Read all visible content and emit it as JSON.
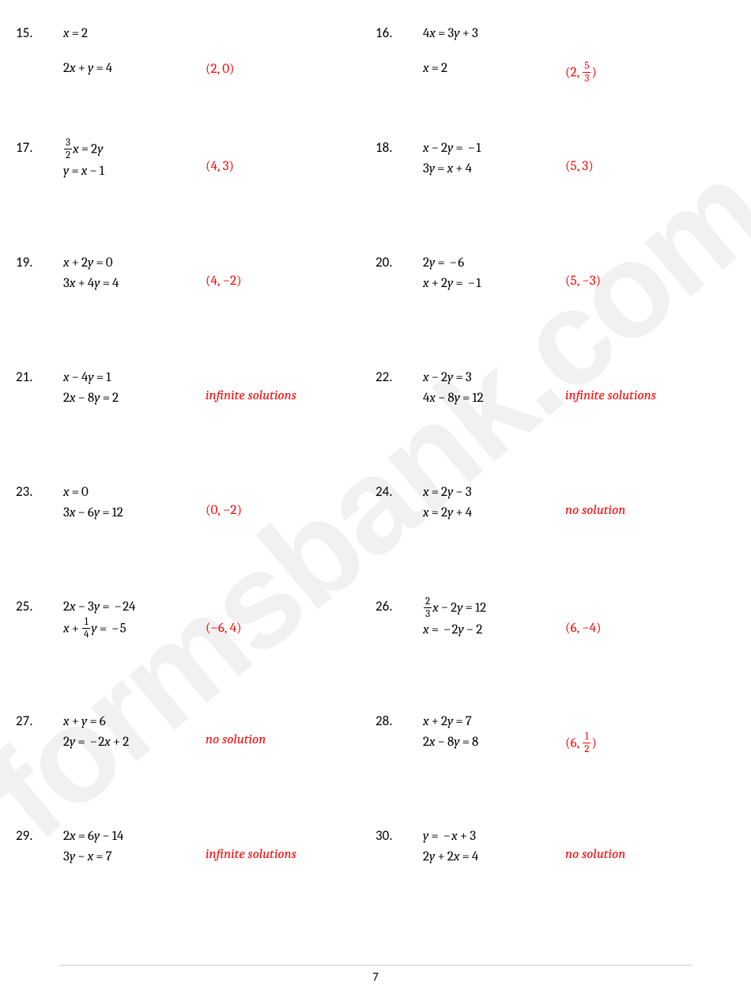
{
  "watermark_text": "formsbank.com",
  "page_number": "7",
  "answer_color": "#ff0000",
  "text_color": "#000000",
  "background_color": "#ffffff",
  "watermark_color": "#f1f1f1",
  "problems": [
    {
      "num": "15.",
      "eq1_html": "<span class='var'>x</span><span class='op'>=</span><span class='num'>2</span>",
      "gap": true,
      "eq2_html": "<span class='num'>2</span><span class='var'>x</span><span class='op'>+</span><span class='var'>y</span><span class='op'>=</span><span class='num'>4</span>",
      "answer_html": "(2, 0)",
      "answer_pad": 48
    },
    {
      "num": "16.",
      "eq1_html": "<span class='num'>4</span><span class='var'>x</span><span class='op'>=</span><span class='num'>3</span><span class='var'>y</span><span class='op'>+</span><span class='num'>3</span>",
      "gap": true,
      "eq2_html": "<span class='var'>x</span><span class='op'>=</span><span class='num'>2</span>",
      "answer_html": "(2, <span class='frac'><span class='fn'>5</span><span class='fd'>3</span></span>)",
      "answer_pad": 48
    },
    {
      "num": "17.",
      "eq1_html": "<span class='frac'><span class='fn'>3</span><span class='fd'>2</span></span><span class='var'>x</span><span class='op'>=</span><span class='num'>2</span><span class='var'>y</span>",
      "eq2_html": "<span class='var'>y</span><span class='op'>=</span><span class='var'>x</span><span class='op'>−</span><span class='num'>1</span>",
      "answer_html": "(4, 3)"
    },
    {
      "num": "18.",
      "eq1_html": "<span class='var'>x</span><span class='op'>−</span><span class='num'>2</span><span class='var'>y</span><span class='op'>=</span><span class='op' style='padding:0 1px 0 3px'>−</span><span class='num'>1</span>",
      "eq2_html": "<span class='num'>3</span><span class='var'>y</span><span class='op'>=</span><span class='var'>x</span><span class='op'>+</span><span class='num'>4</span>",
      "answer_html": "(5, 3)"
    },
    {
      "num": "19.",
      "eq1_html": "<span class='var'>x</span><span class='op'>+</span><span class='num'>2</span><span class='var'>y</span><span class='op'>=</span><span class='num'>0</span>",
      "eq2_html": "<span class='num'>3</span><span class='var'>x</span><span class='op'>+</span><span class='num'>4</span><span class='var'>y</span><span class='op'>=</span><span class='num'>4</span>",
      "answer_html": "(4, −2)"
    },
    {
      "num": "20.",
      "eq1_html": "<span class='num'>2</span><span class='var'>y</span><span class='op'>=</span><span class='op' style='padding:0 1px 0 3px'>−</span><span class='num'>6</span>",
      "eq2_html": "<span class='var'>x</span><span class='op'>+</span><span class='num'>2</span><span class='var'>y</span><span class='op'>=</span><span class='op' style='padding:0 1px 0 3px'>−</span><span class='num'>1</span>",
      "answer_html": "(5, −3)"
    },
    {
      "num": "21.",
      "eq1_html": "<span class='var'>x</span><span class='op'>−</span><span class='num'>4</span><span class='var'>y</span><span class='op'>=</span><span class='num'>1</span>",
      "eq2_html": "<span class='num'>2</span><span class='var'>x</span><span class='op'>−</span><span class='num'>8</span><span class='var'>y</span><span class='op'>=</span><span class='num'>2</span>",
      "answer_html": "<span class='ital'>infinite solutions</span>"
    },
    {
      "num": "22.",
      "eq1_html": "<span class='var'>x</span><span class='op'>−</span><span class='num'>2</span><span class='var'>y</span><span class='op'>=</span><span class='num'>3</span>",
      "eq2_html": "<span class='num'>4</span><span class='var'>x</span><span class='op'>−</span><span class='num'>8</span><span class='var'>y</span><span class='op'>=</span><span class='num'>12</span>",
      "answer_html": "<span class='ital'>infinite solutions</span>"
    },
    {
      "num": "23.",
      "eq1_html": "<span class='var'>x</span><span class='op'>=</span><span class='num'>0</span>",
      "eq2_html": "<span class='num'>3</span><span class='var'>x</span><span class='op'>−</span><span class='num'>6</span><span class='var'>y</span><span class='op'>=</span><span class='num'>12</span>",
      "answer_html": "(0, −2)"
    },
    {
      "num": "24.",
      "eq1_html": "<span class='var'>x</span><span class='op'>=</span><span class='num'>2</span><span class='var'>y</span><span class='op'>−</span><span class='num'>3</span>",
      "eq2_html": "<span class='var'>x</span><span class='op'>=</span><span class='num'>2</span><span class='var'>y</span><span class='op'>+</span><span class='num'>4</span>",
      "answer_html": "<span class='ital'>no solution</span>"
    },
    {
      "num": "25.",
      "eq1_html": "<span class='num'>2</span><span class='var'>x</span><span class='op'>−</span><span class='num'>3</span><span class='var'>y</span><span class='op'>=</span><span class='op' style='padding:0 1px 0 3px'>−</span><span class='num'>24</span>",
      "eq2_html": "<span class='var'>x</span><span class='op'>+</span><span class='frac'><span class='fn'>1</span><span class='fd'>4</span></span><span class='var'>y</span><span class='op'>=</span><span class='op' style='padding:0 1px 0 3px'>−</span><span class='num'>5</span>",
      "answer_html": "(−6, 4)",
      "answer_pad": 30
    },
    {
      "num": "26.",
      "eq1_html": "<span class='frac'><span class='fn'>2</span><span class='fd'>3</span></span><span class='var'>x</span><span class='op'>−</span><span class='num'>2</span><span class='var'>y</span><span class='op'>=</span><span class='num'>12</span>",
      "eq2_html": "<span class='var'>x</span><span class='op'>=</span><span class='op' style='padding:0 1px 0 3px'>−</span><span class='num'>2</span><span class='var'>y</span><span class='op'>−</span><span class='num'>2</span>",
      "answer_html": "(6, −4)",
      "answer_pad": 30
    },
    {
      "num": "27.",
      "eq1_html": "<span class='var'>x</span><span class='op'>+</span><span class='var'>y</span><span class='op'>=</span><span class='num'>6</span>",
      "eq2_html": "<span class='num'>2</span><span class='var'>y</span><span class='op'>=</span><span class='op' style='padding:0 1px 0 3px'>−</span><span class='num'>2</span><span class='var'>x</span><span class='op'>+</span><span class='num'>2</span>",
      "answer_html": "<span class='ital'>no solution</span>"
    },
    {
      "num": "28.",
      "eq1_html": "<span class='var'>x</span><span class='op'>+</span><span class='num'>2</span><span class='var'>y</span><span class='op'>=</span><span class='num'>7</span>",
      "eq2_html": "<span class='num'>2</span><span class='var'>x</span><span class='op'>−</span><span class='num'>8</span><span class='var'>y</span><span class='op'>=</span><span class='num'>8</span>",
      "answer_html": "(6, <span class='frac'><span class='fn'>1</span><span class='fd'>2</span></span>)"
    },
    {
      "num": "29.",
      "eq1_html": "<span class='num'>2</span><span class='var'>x</span><span class='op'>=</span><span class='num'>6</span><span class='var'>y</span><span class='op'>−</span><span class='num'>14</span>",
      "eq2_html": "<span class='num'>3</span><span class='var'>y</span><span class='op'>−</span><span class='var'>x</span><span class='op'>=</span><span class='num'>7</span>",
      "answer_html": "<span class='ital'>infinite solutions</span>"
    },
    {
      "num": "30.",
      "eq1_html": "<span class='var'>y</span><span class='op'>=</span><span class='op' style='padding:0 1px 0 3px'>−</span><span class='var'>x</span><span class='op'>+</span><span class='num'>3</span>",
      "eq2_html": "<span class='num'>2</span><span class='var'>y</span><span class='op'>+</span><span class='num'>2</span><span class='var'>x</span><span class='op'>=</span><span class='num'>4</span>",
      "answer_html": "<span class='ital'>no solution</span>"
    }
  ]
}
